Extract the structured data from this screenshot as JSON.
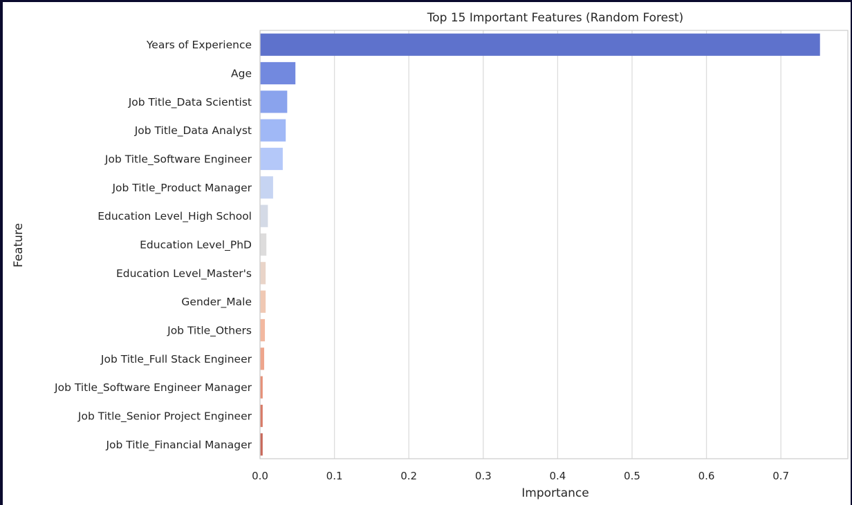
{
  "chart_data": {
    "type": "bar",
    "orientation": "horizontal",
    "title": "Top 15 Important Features (Random Forest)",
    "xlabel": "Importance",
    "ylabel": "Feature",
    "xlim": [
      0,
      0.79
    ],
    "xticks": [
      "0.0",
      "0.1",
      "0.2",
      "0.3",
      "0.4",
      "0.5",
      "0.6",
      "0.7"
    ],
    "grid": "vertical",
    "palette": "coolwarm",
    "categories": [
      "Years of Experience",
      "Age",
      "Job Title_Data Scientist",
      "Job Title_Data Analyst",
      "Job Title_Software Engineer",
      "Job Title_Product Manager",
      "Education Level_High School",
      "Education Level_PhD",
      "Education Level_Master's",
      "Gender_Male",
      "Job Title_Others",
      "Job Title_Full Stack Engineer",
      "Job Title_Software Engineer Manager",
      "Job Title_Senior Project Engineer",
      "Job Title_Financial Manager"
    ],
    "values": [
      0.752,
      0.047,
      0.036,
      0.034,
      0.03,
      0.017,
      0.01,
      0.008,
      0.007,
      0.007,
      0.006,
      0.005,
      0.003,
      0.003,
      0.003
    ],
    "colors": [
      "#5e72cc",
      "#7289df",
      "#8aa3ed",
      "#a0b8f6",
      "#b4c8f9",
      "#c6d4f2",
      "#d4dae6",
      "#dddcdc",
      "#e9d4c8",
      "#f0c8b3",
      "#f2b8a0",
      "#eea58c",
      "#e59078",
      "#d87a66",
      "#c8685a"
    ]
  }
}
